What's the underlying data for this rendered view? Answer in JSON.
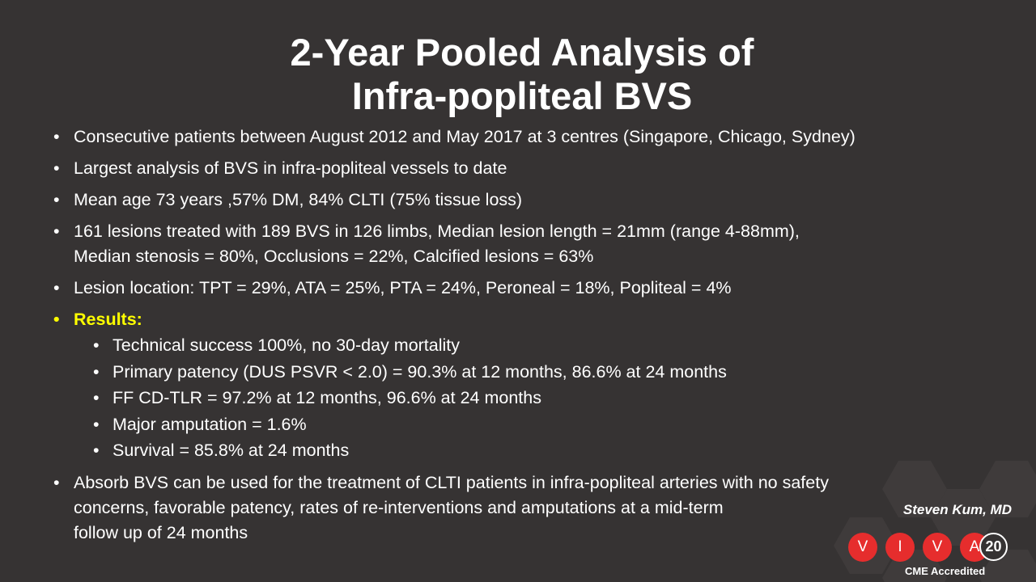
{
  "slide": {
    "title_line1": "2-Year Pooled Analysis of",
    "title_line2": "Infra-popliteal BVS",
    "bullets": [
      "Consecutive patients between August 2012 and May 2017 at 3 centres (Singapore, Chicago, Sydney)",
      "Largest analysis of BVS in infra-popliteal vessels to date",
      "Mean age 73 years ,57% DM, 84% CLTI (75% tissue loss)",
      "161 lesions treated with 189 BVS in 126 limbs, Median lesion length = 21mm (range 4-88mm),",
      "Median stenosis = 80%, Occlusions = 22%, Calcified lesions = 63%",
      "Lesion location: TPT = 29%, ATA = 25%, PTA = 24%, Peroneal = 18%, Popliteal = 4%"
    ],
    "results_label": "Results:",
    "results": [
      "Technical success 100%, no 30-day mortality",
      "Primary patency (DUS PSVR < 2.0) = 90.3% at 12 months, 86.6% at 24 months",
      "FF CD-TLR = 97.2% at 12 months, 96.6% at 24 months",
      "Major amputation = 1.6%",
      "Survival = 85.8% at 24 months"
    ],
    "conclusion": [
      "Absorb BVS can be used for the treatment of CLTI patients in infra-popliteal arteries with no safety",
      "concerns,  favorable patency,  rates of re-interventions and amputations at a mid-term",
      "follow up of 24 months"
    ],
    "bullet_glyph": "•",
    "author": "Steven Kum, MD",
    "logo_letters": [
      "V",
      "I",
      "V",
      "A"
    ],
    "logo_number": "20",
    "cme": "CME Accredited",
    "colors": {
      "background": "#363333",
      "text": "#ffffff",
      "results": "#ffff00",
      "logo_red": "#e62d2d"
    }
  }
}
